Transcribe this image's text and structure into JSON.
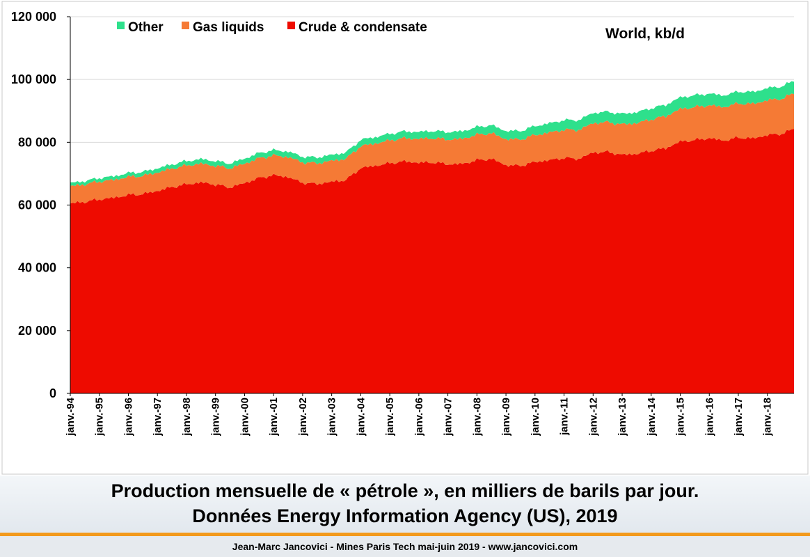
{
  "colors": {
    "other": "#2ee08c",
    "gas_liquids": "#f57a35",
    "crude": "#ee0b00",
    "grid": "#d9d9d9",
    "accent_rule": "#f39a1c"
  },
  "caption": {
    "line1": "Production mensuelle de « pétrole », en milliers de barils par jour.",
    "line2": "Données Energy Information Agency (US), 2019"
  },
  "footer": {
    "text": "Jean-Marc Jancovici - Mines Paris Tech mai-juin 2019 - www.jancovici.com"
  },
  "chart_data": {
    "type": "area",
    "stacked": true,
    "title": "World, kb/d",
    "xlabel": "",
    "ylabel": "",
    "ylim": [
      0,
      120000
    ],
    "y_ticks": [
      0,
      20000,
      40000,
      60000,
      80000,
      100000,
      120000
    ],
    "y_tick_labels": [
      "0",
      "20 000",
      "40 000",
      "60 000",
      "80 000",
      "100 000",
      "120 000"
    ],
    "grid": "horizontal",
    "legend_position": "top-left",
    "legend_order": [
      "Other",
      "Gas liquids",
      "Crude & condensate"
    ],
    "x_tick_labels": [
      "janv.-94",
      "janv.-95",
      "janv.-96",
      "janv.-97",
      "janv.-98",
      "janv.-99",
      "janv.-00",
      "janv.-01",
      "janv.-02",
      "janv.-03",
      "janv.-04",
      "janv.-05",
      "janv.-06",
      "janv.-07",
      "janv.-08",
      "janv.-09",
      "janv.-10",
      "janv.-11",
      "janv.-12",
      "janv.-13",
      "janv.-14",
      "janv.-15",
      "janv.-16",
      "janv.-17",
      "janv.-18"
    ],
    "x": [
      "1994-01",
      "1994-07",
      "1995-01",
      "1995-07",
      "1996-01",
      "1996-07",
      "1997-01",
      "1997-07",
      "1998-01",
      "1998-07",
      "1999-01",
      "1999-07",
      "2000-01",
      "2000-07",
      "2001-01",
      "2001-07",
      "2002-01",
      "2002-07",
      "2003-01",
      "2003-07",
      "2004-01",
      "2004-07",
      "2005-01",
      "2005-07",
      "2006-01",
      "2006-07",
      "2007-01",
      "2007-07",
      "2008-01",
      "2008-07",
      "2009-01",
      "2009-07",
      "2010-01",
      "2010-07",
      "2011-01",
      "2011-07",
      "2012-01",
      "2012-07",
      "2013-01",
      "2013-07",
      "2014-01",
      "2014-07",
      "2015-01",
      "2015-07",
      "2016-01",
      "2016-07",
      "2017-01",
      "2017-07",
      "2018-01",
      "2018-07",
      "2018-12"
    ],
    "series": [
      {
        "name": "Crude & condensate",
        "values": [
          60500,
          61000,
          61800,
          62300,
          63200,
          63500,
          64500,
          65700,
          66600,
          67200,
          66500,
          65600,
          67000,
          68600,
          69500,
          68900,
          67100,
          66700,
          67400,
          68000,
          71800,
          72500,
          73300,
          73900,
          73500,
          73600,
          73000,
          73100,
          74300,
          74700,
          72700,
          72500,
          73700,
          74300,
          75000,
          74700,
          76700,
          76900,
          76000,
          76300,
          77300,
          78100,
          80200,
          80700,
          81300,
          80500,
          81500,
          81200,
          82300,
          82700,
          84300
        ]
      },
      {
        "name": "Gas liquids",
        "values": [
          5500,
          5600,
          5700,
          5700,
          5800,
          5800,
          5900,
          5900,
          6000,
          6000,
          6000,
          6100,
          6200,
          6300,
          6300,
          6400,
          6500,
          6600,
          6700,
          6800,
          7000,
          7100,
          7300,
          7400,
          7600,
          7700,
          7900,
          8000,
          8100,
          8200,
          8300,
          8400,
          8600,
          8800,
          9000,
          9200,
          9400,
          9500,
          9700,
          9800,
          10000,
          10200,
          10400,
          10500,
          10500,
          10700,
          10900,
          11000,
          11100,
          11200,
          11300
        ]
      },
      {
        "name": "Other",
        "values": [
          1000,
          1050,
          1100,
          1150,
          1200,
          1250,
          1300,
          1350,
          1400,
          1450,
          1500,
          1550,
          1600,
          1650,
          1700,
          1750,
          1800,
          1850,
          1900,
          1950,
          2000,
          2050,
          2100,
          2150,
          2200,
          2300,
          2350,
          2400,
          2450,
          2550,
          2600,
          2700,
          2850,
          2950,
          3050,
          3150,
          3250,
          3300,
          3350,
          3450,
          3550,
          3600,
          3700,
          3750,
          3700,
          3700,
          3750,
          3800,
          3850,
          3900,
          4000
        ]
      }
    ]
  }
}
